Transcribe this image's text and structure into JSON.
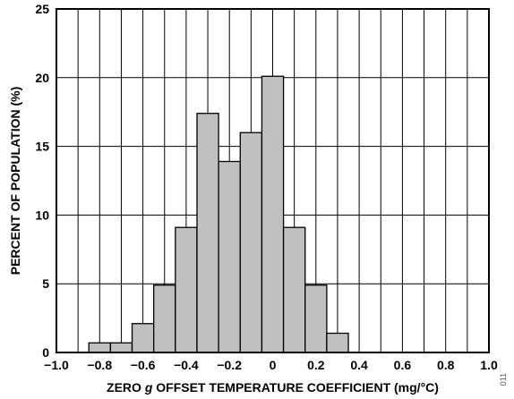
{
  "chart_data": {
    "type": "bar",
    "title": "",
    "xlabel_parts": [
      "ZERO ",
      "g",
      " OFFSET TEMPERATURE COEFFICIENT (mg/°C)"
    ],
    "ylabel": "PERCENT OF POPULATION (%)",
    "xlim": [
      -1.0,
      1.0
    ],
    "ylim": [
      0,
      25
    ],
    "xticks": [
      -1.0,
      -0.8,
      -0.6,
      -0.4,
      -0.2,
      0,
      0.2,
      0.4,
      0.6,
      0.8,
      1.0
    ],
    "xtick_labels": [
      "−1.0",
      "−0.8",
      "−0.6",
      "−0.4",
      "−0.2",
      "0",
      "0.2",
      "0.4",
      "0.6",
      "0.8",
      "1.0"
    ],
    "yticks": [
      0,
      5,
      10,
      15,
      20,
      25
    ],
    "ytick_labels": [
      "0",
      "5",
      "10",
      "15",
      "20",
      "25"
    ],
    "vertical_grid": [
      -0.9,
      -0.8,
      -0.7,
      -0.6,
      -0.5,
      -0.4,
      -0.3,
      -0.2,
      -0.1,
      0,
      0.1,
      0.2,
      0.3,
      0.4,
      0.5,
      0.6,
      0.7,
      0.8,
      0.9
    ],
    "horizontal_grid": [
      5,
      10,
      15,
      20
    ],
    "bin_width": 0.1,
    "bins": [
      {
        "x0": -0.85,
        "value": 0.7
      },
      {
        "x0": -0.75,
        "value": 0.7
      },
      {
        "x0": -0.65,
        "value": 2.1
      },
      {
        "x0": -0.55,
        "value": 4.9
      },
      {
        "x0": -0.45,
        "value": 9.1
      },
      {
        "x0": -0.35,
        "value": 17.4
      },
      {
        "x0": -0.25,
        "value": 13.9
      },
      {
        "x0": -0.15,
        "value": 16.0
      },
      {
        "x0": -0.05,
        "value": 20.1
      },
      {
        "x0": 0.05,
        "value": 9.1
      },
      {
        "x0": 0.15,
        "value": 4.9
      },
      {
        "x0": 0.25,
        "value": 1.4
      }
    ],
    "bar_color": "#c0c0c0",
    "grid": true,
    "legend": "none"
  },
  "side_note": "011"
}
